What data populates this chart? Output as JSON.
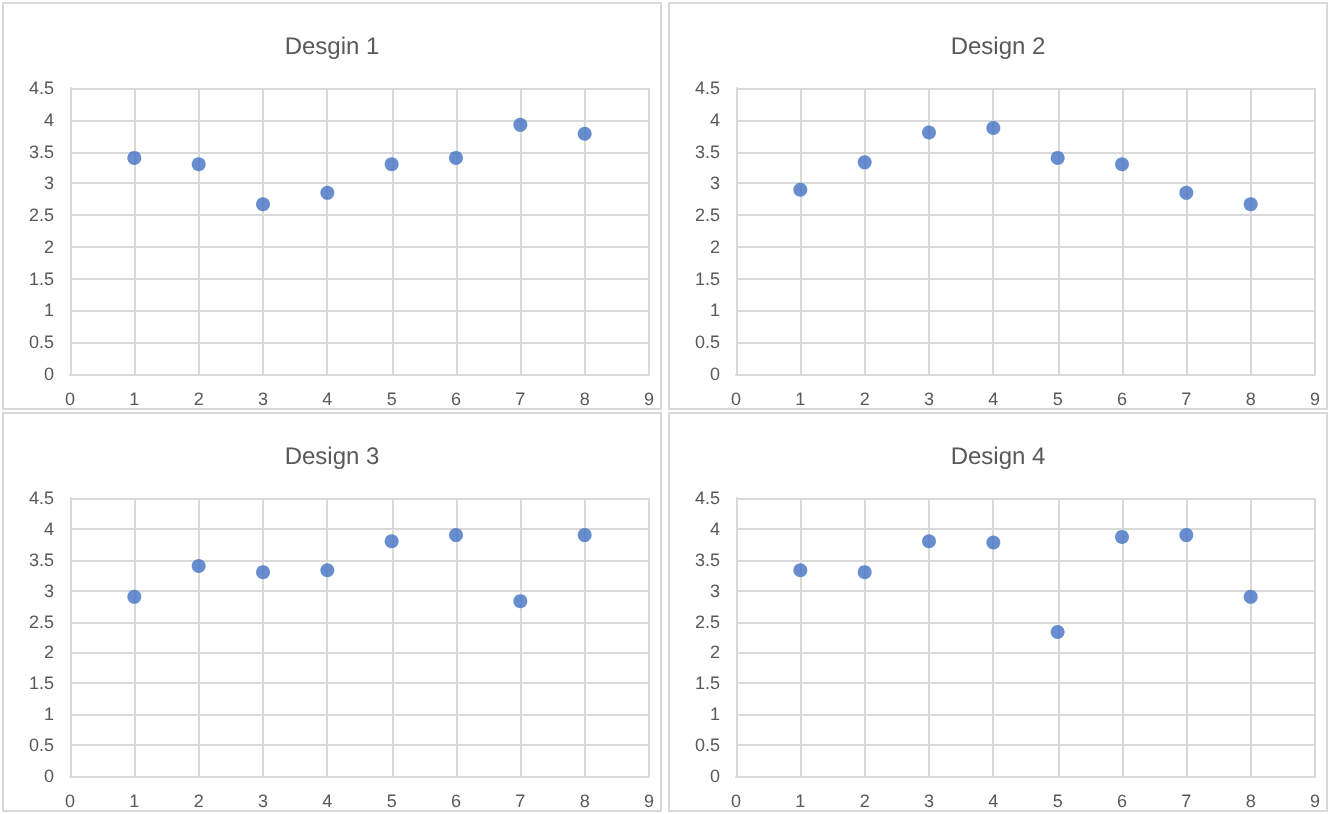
{
  "chart_data": [
    {
      "type": "scatter",
      "title": "Desgin 1",
      "x": [
        1,
        2,
        3,
        4,
        5,
        6,
        7,
        8
      ],
      "values": [
        3.4,
        3.3,
        2.67,
        2.85,
        3.3,
        3.4,
        3.92,
        3.78
      ],
      "color": "#4472c4",
      "xlim": [
        0,
        9
      ],
      "xticks": [
        0,
        1,
        2,
        3,
        4,
        5,
        6,
        7,
        8,
        9
      ],
      "ylim": [
        0,
        4.5
      ],
      "yticks": [
        0,
        0.5,
        1,
        1.5,
        2,
        2.5,
        3,
        3.5,
        4,
        4.5
      ],
      "grid": true,
      "marker": "circle"
    },
    {
      "type": "scatter",
      "title": "Design 2",
      "x": [
        1,
        2,
        3,
        4,
        5,
        6,
        7,
        8
      ],
      "values": [
        2.9,
        3.33,
        3.8,
        3.87,
        3.4,
        3.3,
        2.85,
        2.67
      ],
      "color": "#4472c4",
      "xlim": [
        0,
        9
      ],
      "xticks": [
        0,
        1,
        2,
        3,
        4,
        5,
        6,
        7,
        8,
        9
      ],
      "ylim": [
        0,
        4.5
      ],
      "yticks": [
        0,
        0.5,
        1,
        1.5,
        2,
        2.5,
        3,
        3.5,
        4,
        4.5
      ],
      "grid": true,
      "marker": "circle"
    },
    {
      "type": "scatter",
      "title": "Design 3",
      "x": [
        1,
        2,
        3,
        4,
        5,
        6,
        7,
        8
      ],
      "values": [
        2.9,
        3.4,
        3.3,
        3.33,
        3.8,
        3.9,
        2.83,
        3.9
      ],
      "color": "#4472c4",
      "xlim": [
        0,
        9
      ],
      "xticks": [
        0,
        1,
        2,
        3,
        4,
        5,
        6,
        7,
        8,
        9
      ],
      "ylim": [
        0,
        4.5
      ],
      "yticks": [
        0,
        0.5,
        1,
        1.5,
        2,
        2.5,
        3,
        3.5,
        4,
        4.5
      ],
      "grid": true,
      "marker": "circle"
    },
    {
      "type": "scatter",
      "title": "Design 4",
      "x": [
        1,
        2,
        3,
        4,
        5,
        6,
        7,
        8
      ],
      "values": [
        3.33,
        3.3,
        3.8,
        3.78,
        2.33,
        3.87,
        3.9,
        2.9
      ],
      "color": "#4472c4",
      "xlim": [
        0,
        9
      ],
      "xticks": [
        0,
        1,
        2,
        3,
        4,
        5,
        6,
        7,
        8,
        9
      ],
      "ylim": [
        0,
        4.5
      ],
      "yticks": [
        0,
        0.5,
        1,
        1.5,
        2,
        2.5,
        3,
        3.5,
        4,
        4.5
      ],
      "grid": true,
      "marker": "circle"
    }
  ]
}
